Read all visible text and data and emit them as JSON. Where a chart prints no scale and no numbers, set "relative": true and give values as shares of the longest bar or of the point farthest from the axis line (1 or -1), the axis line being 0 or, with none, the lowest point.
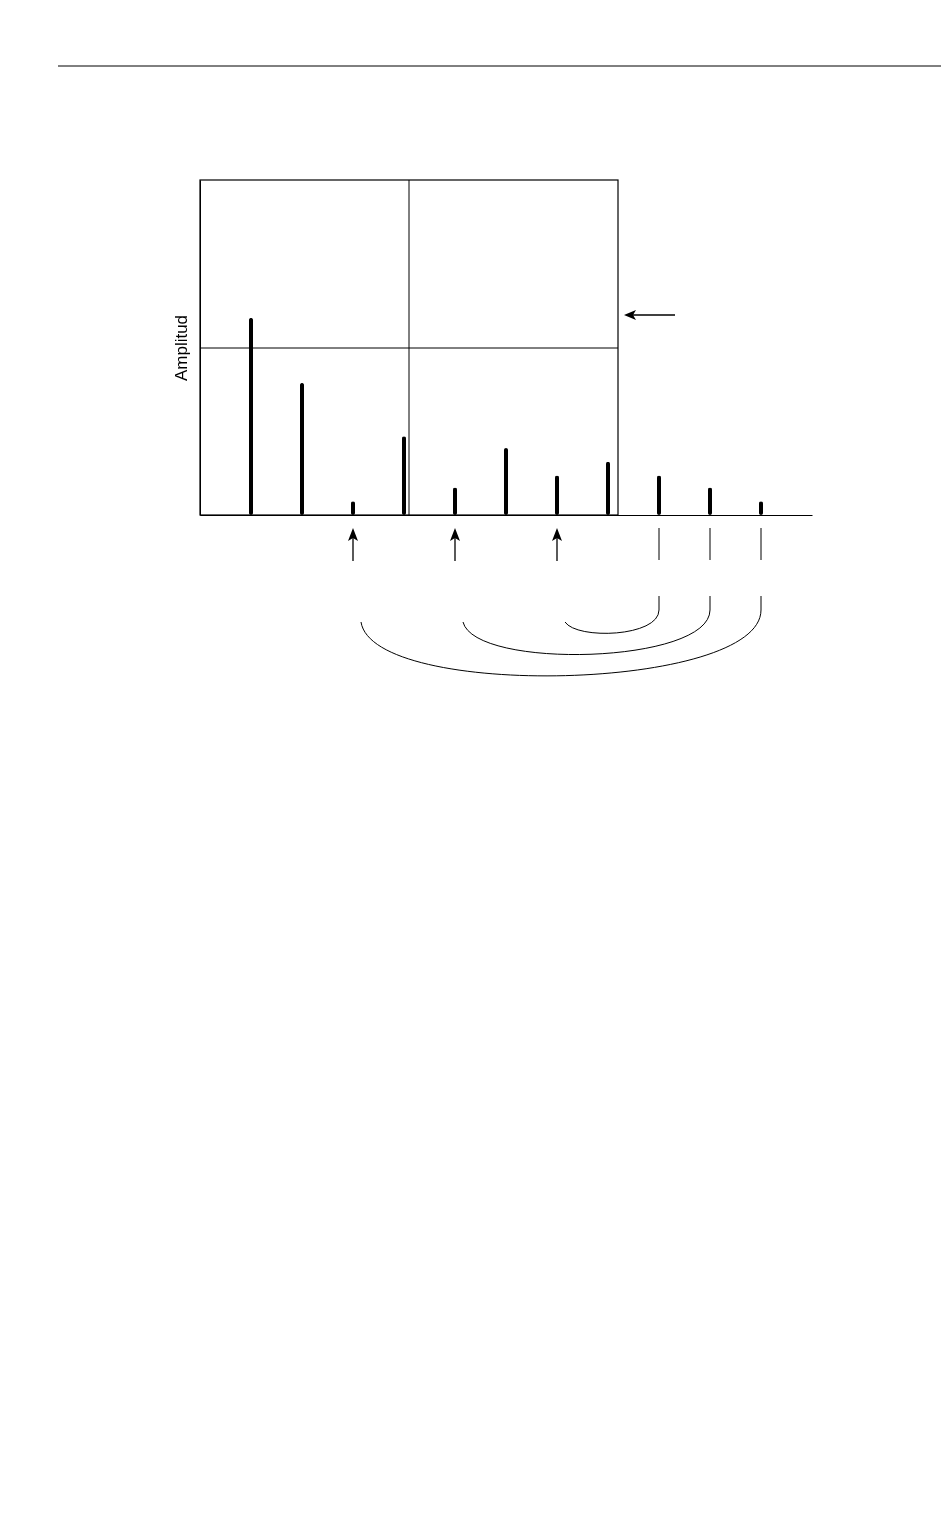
{
  "chart_data": {
    "type": "bar",
    "ylabel": "Amplitud",
    "relative": true,
    "categories": [
      null,
      null,
      null,
      null,
      null,
      null,
      null,
      null,
      null,
      null,
      null
    ],
    "series": [
      {
        "color": "#000000",
        "values": [
          1,
          0.67,
          0.07,
          0.4,
          0.14,
          0.34,
          0.2,
          0.27,
          0.2,
          0.14,
          0.07
        ]
      }
    ]
  }
}
